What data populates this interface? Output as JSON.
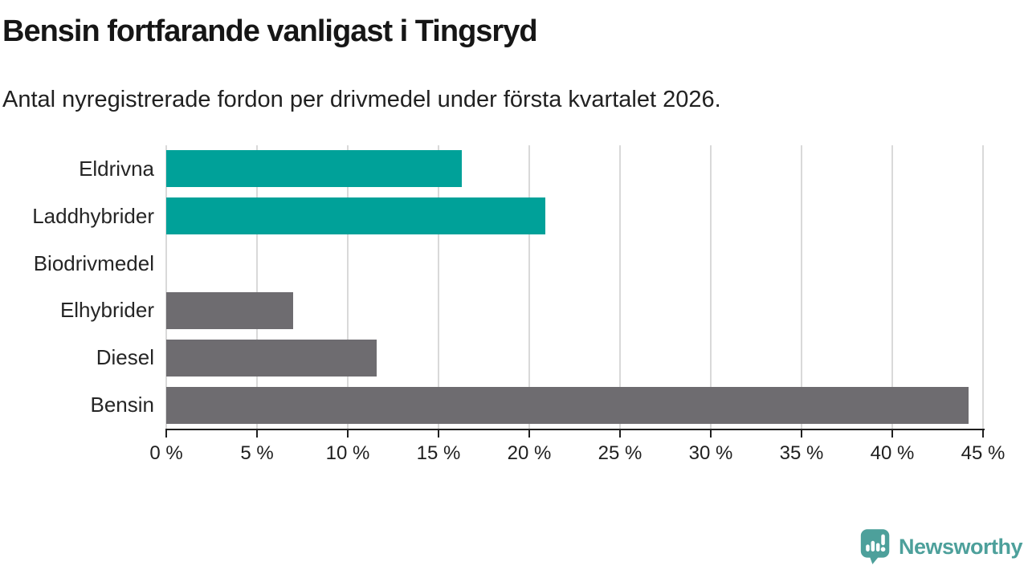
{
  "header": {
    "title": "Bensin fortfarande vanligast i Tingsryd",
    "subtitle": "Antal nyregistrerade fordon per drivmedel under första kvartalet 2026."
  },
  "chart_data": {
    "type": "bar",
    "orientation": "horizontal",
    "title": "Bensin fortfarande vanligast i Tingsryd",
    "subtitle": "Antal nyregistrerade fordon per drivmedel under första kvartalet 2026.",
    "categories": [
      "Eldrivna",
      "Laddhybrider",
      "Biodrivmedel",
      "Elhybrider",
      "Diesel",
      "Bensin"
    ],
    "values": [
      16.3,
      20.9,
      0,
      7.0,
      11.6,
      44.2
    ],
    "unit": "%",
    "xlim": [
      0,
      45
    ],
    "x_ticks": [
      0,
      5,
      10,
      15,
      20,
      25,
      30,
      35,
      40,
      45
    ],
    "x_tick_labels": [
      "0 %",
      "5 %",
      "10 %",
      "15 %",
      "20 %",
      "25 %",
      "30 %",
      "35 %",
      "40 %",
      "45 %"
    ],
    "bar_colors": [
      "#00a199",
      "#00a199",
      "#6e6c70",
      "#6e6c70",
      "#6e6c70",
      "#6e6c70"
    ],
    "grid": "vertical-only",
    "legend": "none",
    "xlabel": "",
    "ylabel": ""
  },
  "colors": {
    "highlight_teal": "#00a199",
    "neutral_gray": "#6e6c70",
    "gridline": "#d9d9d9",
    "axis": "#1f1f1f",
    "logo_teal": "#4da09b"
  },
  "footer": {
    "brand": "Newsworthy"
  }
}
